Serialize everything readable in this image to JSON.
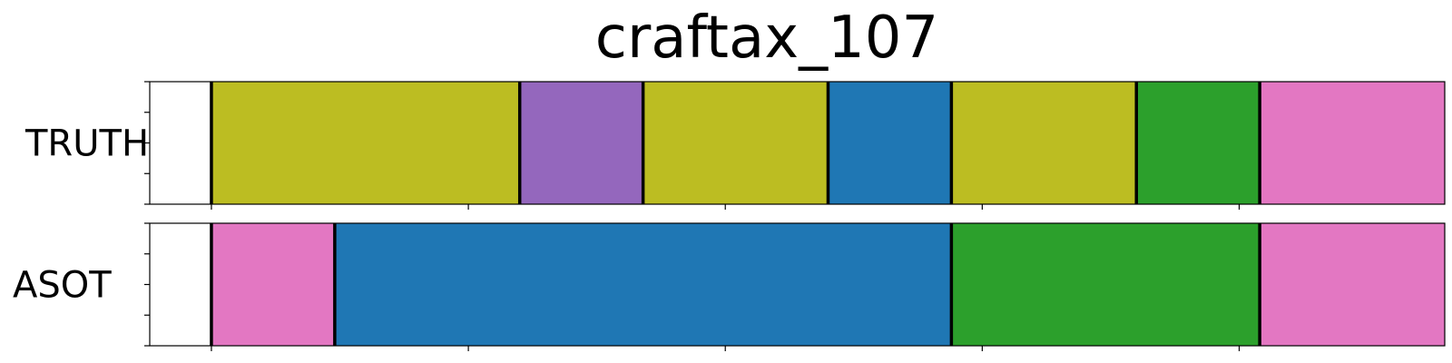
{
  "chart_data": {
    "type": "segmentation",
    "title": "craftax_107",
    "x_range": [
      0,
      126
    ],
    "rows": [
      {
        "label": "TRUTH",
        "segments": [
          {
            "start": 6,
            "end": 36,
            "color": "#bcbd22"
          },
          {
            "start": 36,
            "end": 48,
            "color": "#9467bd"
          },
          {
            "start": 48,
            "end": 66,
            "color": "#bcbd22"
          },
          {
            "start": 66,
            "end": 78,
            "color": "#1f77b4"
          },
          {
            "start": 78,
            "end": 96,
            "color": "#bcbd22"
          },
          {
            "start": 96,
            "end": 108,
            "color": "#2ca02c"
          },
          {
            "start": 108,
            "end": 132,
            "color": "#e377c2"
          }
        ]
      },
      {
        "label": "ASOT",
        "segments": [
          {
            "start": 6,
            "end": 18,
            "color": "#e377c2"
          },
          {
            "start": 18,
            "end": 78,
            "color": "#1f77b4"
          },
          {
            "start": 78,
            "end": 108,
            "color": "#2ca02c"
          },
          {
            "start": 108,
            "end": 132,
            "color": "#e377c2"
          }
        ]
      }
    ],
    "boundaries": [
      6,
      132
    ],
    "x_ticks": [
      6,
      31,
      56,
      81,
      106,
      132
    ],
    "y_ticks": [
      0,
      1,
      2,
      3,
      4
    ]
  }
}
